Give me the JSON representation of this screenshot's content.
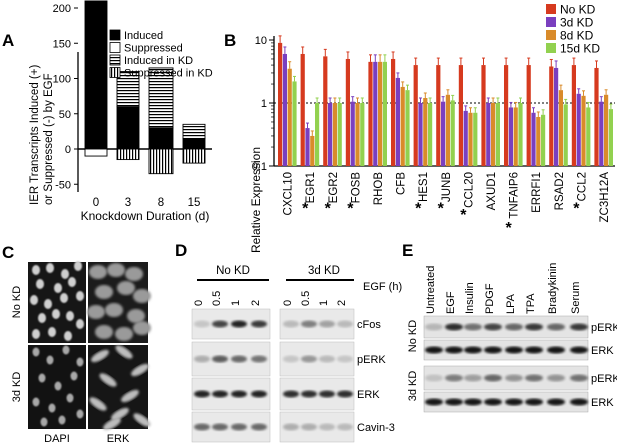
{
  "panel_labels": [
    "A",
    "B",
    "C",
    "D",
    "E"
  ],
  "chart_data": [
    {
      "panel": "A",
      "type": "bar",
      "ylabel": [
        "IER Transcripts Induced (+)",
        "or Suppressed (-) by EGF"
      ],
      "xlabel": "Knockdown Duration (d)",
      "categories": [
        "0",
        "3",
        "8",
        "15"
      ],
      "yticks": [
        "200",
        "150",
        "100",
        "50",
        "0",
        "-50"
      ],
      "ylim": [
        -60,
        215
      ],
      "legend": [
        "Induced",
        "Suppressed",
        "Induced in KD",
        "Suppressed in KD"
      ],
      "series": [
        {
          "name": "Induced",
          "values": [
            210,
            60,
            30,
            15
          ]
        },
        {
          "name": "Suppressed",
          "values": [
            -10,
            0,
            0,
            0
          ]
        },
        {
          "name": "Induced in KD",
          "values": [
            0,
            50,
            85,
            20
          ]
        },
        {
          "name": "Suppressed in KD",
          "values": [
            0,
            -15,
            -35,
            -20
          ]
        }
      ]
    },
    {
      "panel": "B",
      "type": "bar",
      "ylabel": "Relative Expression",
      "yscale": "log",
      "ylim": [
        0.1,
        10
      ],
      "yticks": [
        "10",
        "1",
        "0.1"
      ],
      "reference_line": 1,
      "legend": [
        "No KD",
        "3d KD",
        "8d KD",
        "15d KD"
      ],
      "colors": [
        "#d63a1f",
        "#7a3fbf",
        "#d98b2a",
        "#92d14f"
      ],
      "categories": [
        "CXCL10",
        "EGR1",
        "EGR2",
        "FOSB",
        "RHOB",
        "CFB",
        "HES1",
        "JUNB",
        "CCL20",
        "AXUD1",
        "TNFAIP6",
        "ERRFI1",
        "RSAD2",
        "CCL2",
        "ZC3H12A"
      ],
      "starred": [
        "EGR1",
        "EGR2",
        "FOSB",
        "HES1",
        "JUNB",
        "CCL20",
        "TNFAIP6",
        "CCL2"
      ],
      "star_symbol": "*",
      "series": [
        {
          "name": "No KD",
          "values": [
            9.0,
            6.0,
            5.5,
            5.0,
            4.5,
            5.0,
            4.0,
            4.0,
            4.0,
            4.0,
            4.0,
            4.0,
            3.8,
            4.0,
            3.6
          ]
        },
        {
          "name": "3d KD",
          "values": [
            6.0,
            0.4,
            1.0,
            1.05,
            4.5,
            2.5,
            1.0,
            1.05,
            0.75,
            1.0,
            0.85,
            0.7,
            3.6,
            1.4,
            1.05
          ]
        },
        {
          "name": "8d KD",
          "values": [
            3.5,
            0.3,
            1.0,
            1.0,
            4.5,
            1.8,
            1.2,
            1.35,
            0.7,
            1.0,
            0.85,
            0.6,
            1.6,
            1.3,
            1.35
          ]
        },
        {
          "name": "15d KD",
          "values": [
            2.2,
            1.0,
            1.0,
            1.0,
            4.5,
            1.6,
            1.0,
            1.1,
            0.7,
            1.0,
            1.0,
            0.65,
            0.95,
            0.85,
            0.8
          ]
        }
      ]
    }
  ],
  "panel_c": {
    "column_labels": [
      "DAPI",
      "ERK"
    ],
    "row_labels": [
      "No KD",
      "3d KD"
    ]
  },
  "panel_d": {
    "group_labels": [
      "No KD",
      "3d KD"
    ],
    "axis_title": "EGF (h)",
    "timepoints": [
      "0",
      "0.5",
      "1",
      "2"
    ],
    "row_labels": [
      "cFos",
      "pERK",
      "ERK",
      "Cavin-3"
    ]
  },
  "panel_e": {
    "lanes": [
      "Untreated",
      "EGF",
      "Insulin",
      "PDGF",
      "LPA",
      "TPA",
      "Bradykinin",
      "Serum"
    ],
    "row_labels": [
      "pERK",
      "ERK",
      "pERK",
      "ERK"
    ],
    "group_labels": [
      "No KD",
      "3d KD"
    ]
  }
}
